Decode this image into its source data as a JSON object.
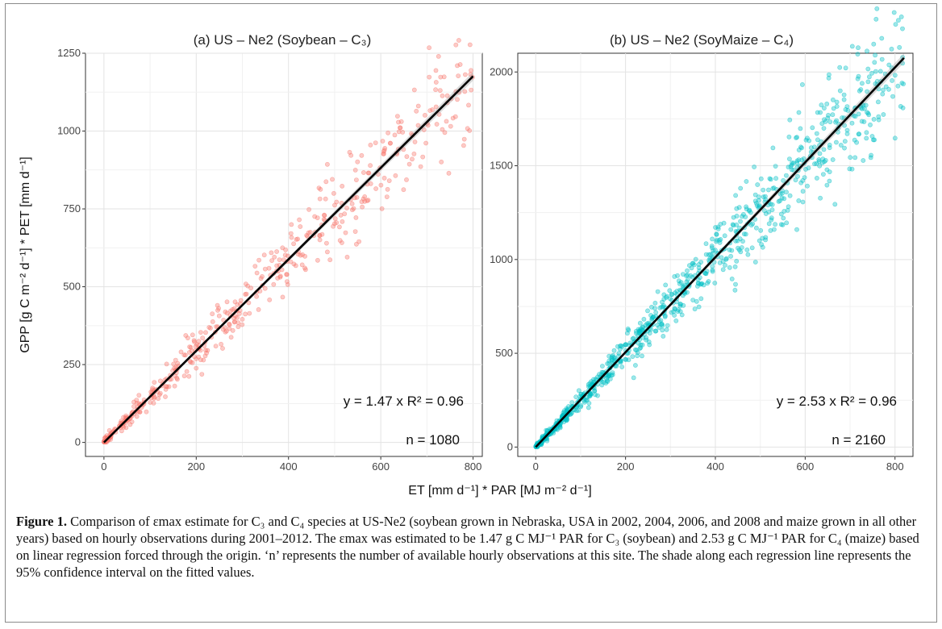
{
  "figure": {
    "ylabel": "GPP [g C m⁻² d⁻¹] * PET [mm d⁻¹]",
    "xlabel": "ET [mm d⁻¹] * PAR [MJ m⁻² d⁻¹]",
    "caption_label": "Figure 1.",
    "caption_text": " Comparison of εmax estimate for C₃ and C₄ species at US-Ne2 (soybean grown in Nebraska, USA in 2002, 2004, 2006, and 2008 and maize grown in all other years) based on hourly observations during 2001–2012. The εmax was estimated to be 1.47 g C MJ⁻¹ PAR for C₃ (soybean) and 2.53 g C MJ⁻¹ PAR for C₄ (maize) based on linear regression forced through the origin. ‘n’ represents the number of available hourly observations at this site. The shade along each regression line represents the 95% confidence interval on the fitted values."
  },
  "chart_data": [
    {
      "type": "scatter",
      "title": "(a) US – Ne2 (Soybean – C₃)",
      "xlim": [
        -40,
        820
      ],
      "ylim": [
        -45,
        1250
      ],
      "xticks": [
        0,
        200,
        400,
        600,
        800
      ],
      "yticks": [
        0,
        250,
        500,
        750,
        1000,
        1250
      ],
      "grid": true,
      "point_color": "#F8766D",
      "line_color": "#000000",
      "regression": {
        "slope": 1.47,
        "intercept": 0,
        "r2": 0.96
      },
      "equation_label": "y = 1.47 x   R² = 0.96",
      "n_label": "n = 1080",
      "n": 1080,
      "x_max_observed": 800
    },
    {
      "type": "scatter",
      "title": "(b) US – Ne2 (SoyMaize – C₄)",
      "xlim": [
        -40,
        840
      ],
      "ylim": [
        -50,
        2100
      ],
      "xticks": [
        0,
        200,
        400,
        600,
        800
      ],
      "yticks": [
        0,
        500,
        1000,
        1500,
        2000
      ],
      "grid": true,
      "point_color": "#00BFC4",
      "line_color": "#000000",
      "regression": {
        "slope": 2.53,
        "intercept": 0,
        "r2": 0.96
      },
      "equation_label": "y = 2.53 x   R² = 0.96",
      "n_label": "n = 2160",
      "n": 2160,
      "x_max_observed": 820
    }
  ]
}
